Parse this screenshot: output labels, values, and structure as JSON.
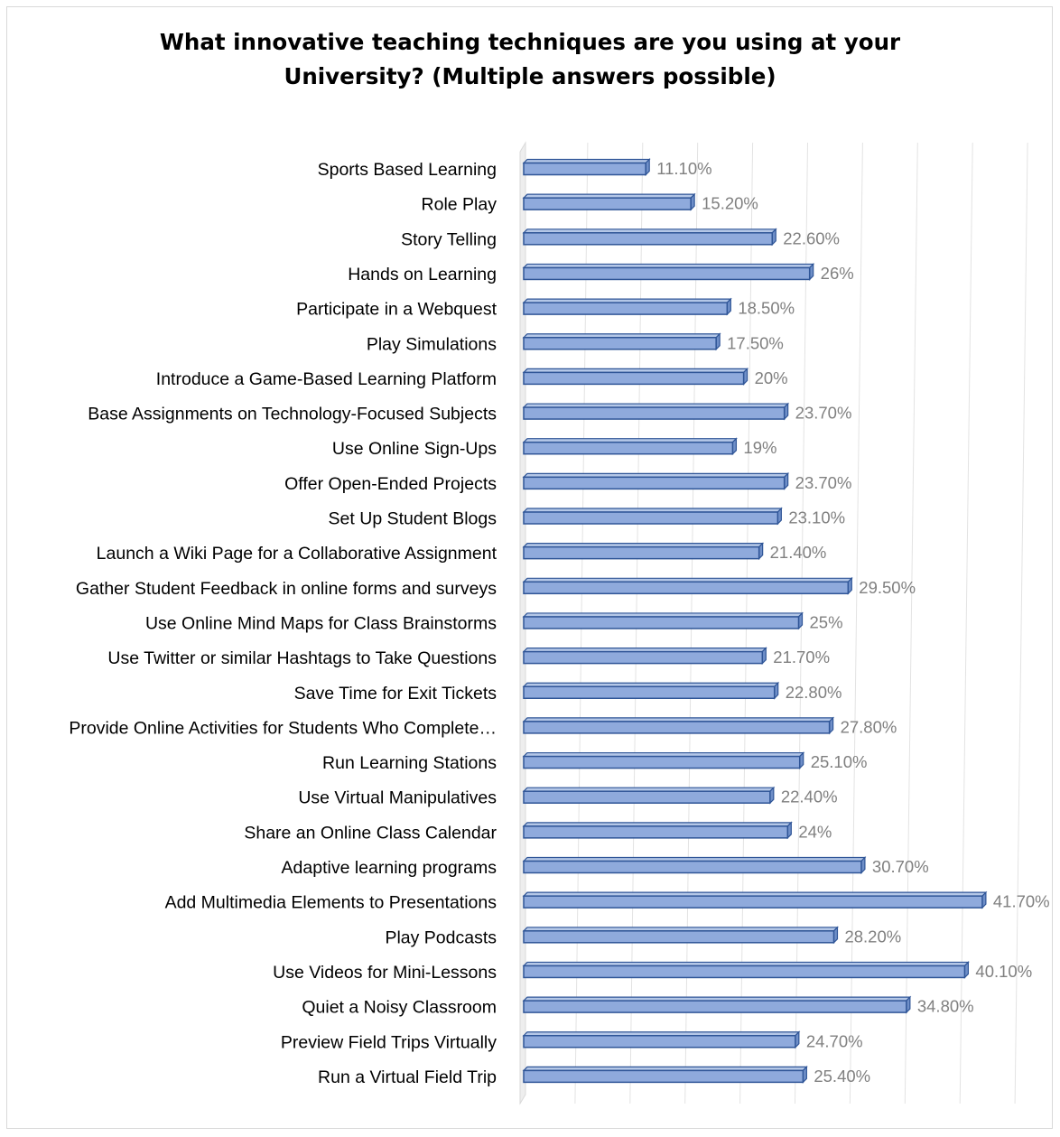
{
  "chart_data": {
    "type": "bar",
    "orientation": "horizontal",
    "style": "3d-clustered-bar",
    "title_lines": [
      "What innovative teaching techniques are you using at your",
      "University? (Multiple answers possible)"
    ],
    "categories": [
      "Sports Based Learning",
      "Role Play",
      "Story Telling",
      "Hands on Learning",
      "Participate in a Webquest",
      "Play Simulations",
      "Introduce a Game-Based Learning Platform",
      "Base Assignments on Technology-Focused Subjects",
      "Use Online Sign-Ups",
      "Offer Open-Ended Projects",
      "Set Up Student Blogs",
      "Launch a Wiki Page for a Collaborative Assignment",
      "Gather Student Feedback in online forms and surveys",
      "Use Online Mind Maps for Class Brainstorms",
      "Use Twitter or similar Hashtags to Take Questions",
      "Save Time for Exit Tickets",
      "Provide Online Activities for Students Who Complete…",
      "Run Learning Stations",
      "Use Virtual Manipulatives",
      "Share an Online Class Calendar",
      "Adaptive learning programs",
      "Add Multimedia Elements to Presentations",
      "Play Podcasts",
      "Use Videos for Mini-Lessons",
      "Quiet a Noisy Classroom",
      "Preview Field Trips Virtually",
      "Run a Virtual Field Trip"
    ],
    "values": [
      11.1,
      15.2,
      22.6,
      26,
      18.5,
      17.5,
      20,
      23.7,
      19,
      23.7,
      23.1,
      21.4,
      29.5,
      25,
      21.7,
      22.8,
      27.8,
      25.1,
      22.4,
      24,
      30.7,
      41.7,
      28.2,
      40.1,
      34.8,
      24.7,
      25.4
    ],
    "data_labels": [
      "11.10%",
      "15.20%",
      "22.60%",
      "26%",
      "18.50%",
      "17.50%",
      "20%",
      "23.70%",
      "19%",
      "23.70%",
      "23.10%",
      "21.40%",
      "29.50%",
      "25%",
      "21.70%",
      "22.80%",
      "27.80%",
      "25.10%",
      "22.40%",
      "24%",
      "30.70%",
      "41.70%",
      "28.20%",
      "40.10%",
      "34.80%",
      "24.70%",
      "25.40%"
    ],
    "xlim": [
      0,
      45
    ],
    "grid": true,
    "legend": "none",
    "bar_color": "#8faadc",
    "bar_edge_color": "#2f5597",
    "label_color": "#808080"
  }
}
